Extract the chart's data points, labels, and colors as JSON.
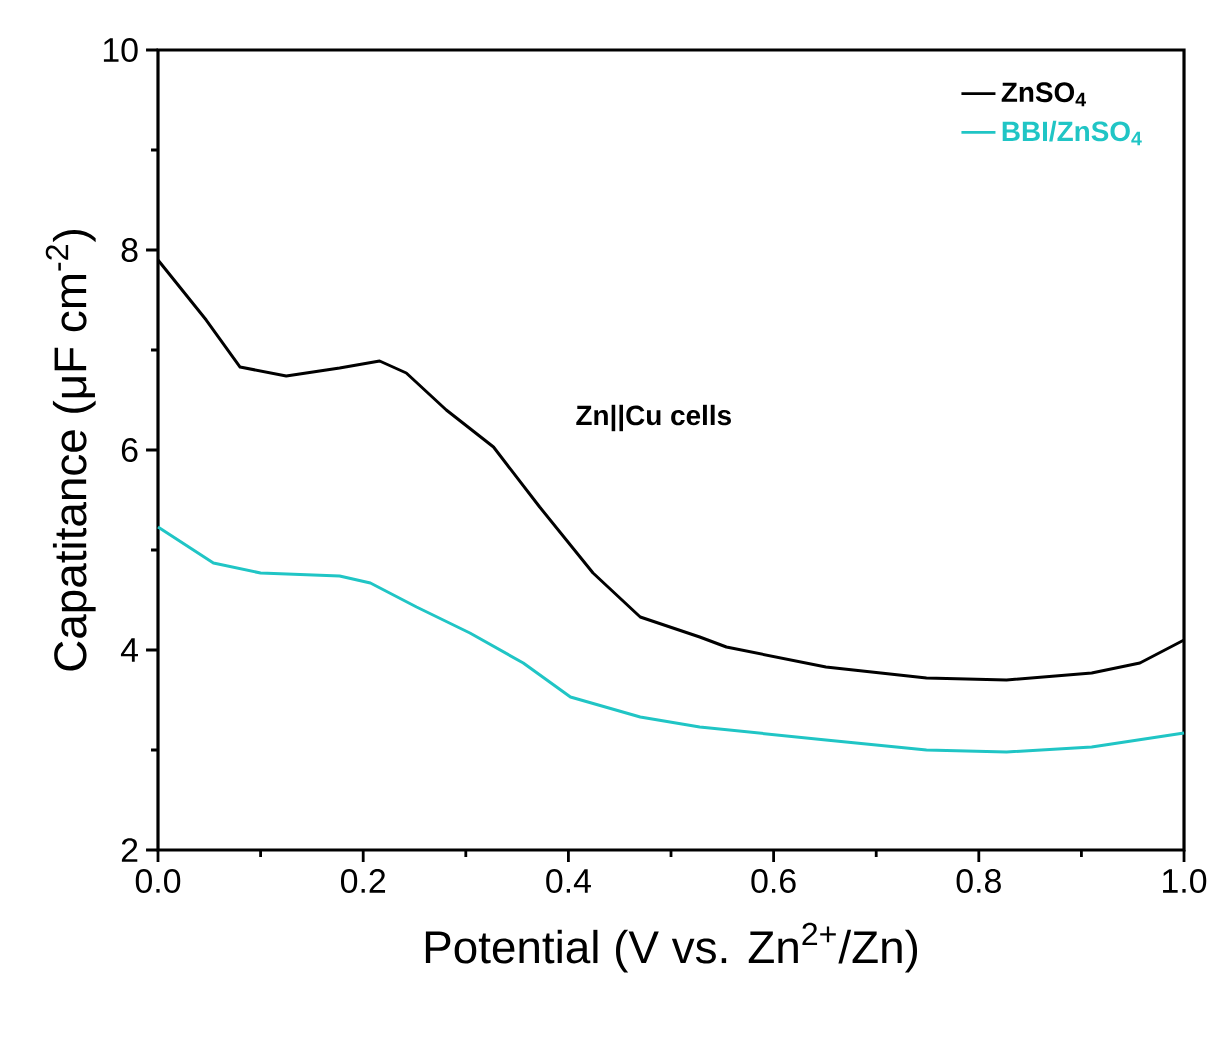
{
  "chart_data": {
    "type": "line",
    "xlabel": "Potential (V vs. Zn$^{2+}$/Zn)",
    "ylabel": "Capatitance (μF cm$^{-2}$)",
    "annotations": [
      "Zn||Cu cells"
    ],
    "xlim": [
      0,
      1
    ],
    "ylim": [
      2,
      10
    ],
    "xticks": [
      {
        "value": 0,
        "label": "0.0"
      },
      0.2,
      0.4,
      0.6,
      0.8,
      {
        "value": 1,
        "label": "1.0"
      }
    ],
    "yticks": [
      2,
      4,
      6,
      8,
      10
    ],
    "legend": "top right",
    "grid": false,
    "marker": "none",
    "line_style": "solid",
    "series": [
      {
        "name": "ZnSO$_{4}$",
        "color": "#000000",
        "x": [
          0,
          0.047,
          0.08,
          0.125,
          0.177,
          0.216,
          0.242,
          0.281,
          0.327,
          0.372,
          0.424,
          0.47,
          0.528,
          0.554,
          0.651,
          0.749,
          0.827,
          0.91,
          0.957,
          1.0
        ],
        "values": [
          7.9,
          7.3,
          6.83,
          6.74,
          6.82,
          6.89,
          6.77,
          6.4,
          6.03,
          5.43,
          4.77,
          4.33,
          4.13,
          4.03,
          3.83,
          3.72,
          3.7,
          3.77,
          3.87,
          4.1
        ]
      },
      {
        "name": "BBI/ZnSO$_{4}$",
        "color": "#20c5c5",
        "x": [
          0,
          0.054,
          0.1,
          0.177,
          0.207,
          0.252,
          0.304,
          0.356,
          0.402,
          0.47,
          0.528,
          0.651,
          0.749,
          0.827,
          0.91,
          1.0
        ],
        "values": [
          5.23,
          4.87,
          4.77,
          4.74,
          4.67,
          4.43,
          4.17,
          3.87,
          3.53,
          3.33,
          3.23,
          3.1,
          3.0,
          2.98,
          3.03,
          3.17
        ]
      }
    ]
  }
}
